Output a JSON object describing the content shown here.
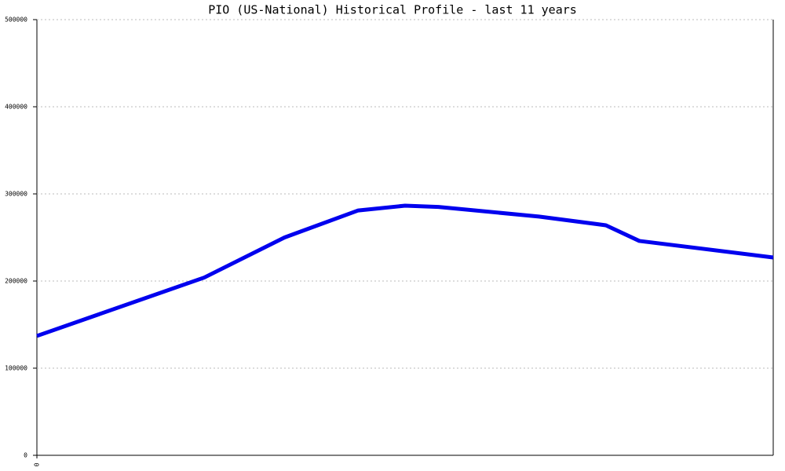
{
  "chart_data": {
    "type": "line",
    "title": "PIO (US-National) Historical Profile - last 11 years",
    "x": [
      0,
      2.5,
      3.7,
      4.8,
      5.5,
      6,
      7.5,
      8.5,
      9,
      11
    ],
    "series": [
      {
        "color": "#0000ee",
        "values": [
          137000,
          204000,
          250000,
          281000,
          286500,
          285000,
          274000,
          264000,
          246000,
          227000
        ]
      }
    ],
    "xlim": [
      0,
      11
    ],
    "xticks": [
      0
    ],
    "ylim": [
      0,
      500000
    ],
    "yticks": [
      0,
      100000,
      200000,
      300000,
      400000,
      500000
    ],
    "grid": true
  }
}
